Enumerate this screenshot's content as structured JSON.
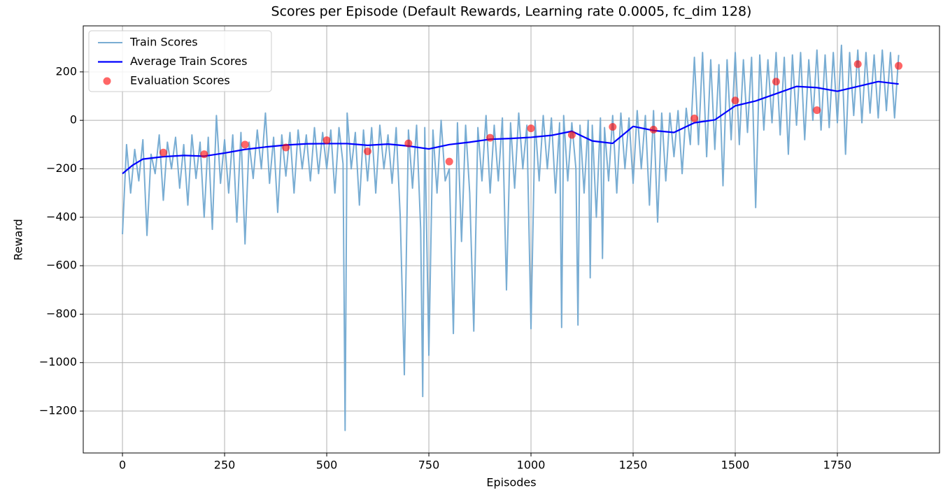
{
  "chart_data": {
    "type": "line",
    "title": "Scores per Episode (Default Rewards, Learning rate 0.0005, fc_dim 128)",
    "x_label": "Episodes",
    "y_label": "Reward",
    "xlim": [
      -96,
      2000
    ],
    "ylim": [
      -1373,
      390
    ],
    "xticks": [
      0,
      250,
      500,
      750,
      1000,
      1250,
      1500,
      1750
    ],
    "yticks": [
      {
        "value": -1200,
        "label": "−1200"
      },
      {
        "value": -1000,
        "label": "−1000"
      },
      {
        "value": -800,
        "label": "−800"
      },
      {
        "value": -600,
        "label": "−600"
      },
      {
        "value": -400,
        "label": "−400"
      },
      {
        "value": -200,
        "label": "−200"
      },
      0,
      200
    ],
    "grid": true,
    "legend": "upper left",
    "series": [
      {
        "name": "Train Scores",
        "type": "line",
        "color": "#72a9d1",
        "x": [
          0,
          10,
          20,
          30,
          40,
          50,
          60,
          70,
          80,
          90,
          100,
          110,
          120,
          130,
          140,
          150,
          160,
          170,
          180,
          190,
          200,
          210,
          220,
          230,
          240,
          250,
          260,
          270,
          280,
          290,
          300,
          310,
          320,
          330,
          340,
          350,
          360,
          370,
          380,
          390,
          400,
          410,
          420,
          430,
          440,
          450,
          460,
          470,
          480,
          490,
          500,
          510,
          520,
          530,
          540,
          545,
          550,
          560,
          570,
          580,
          590,
          600,
          610,
          620,
          630,
          640,
          650,
          660,
          670,
          680,
          690,
          700,
          710,
          720,
          730,
          735,
          740,
          750,
          760,
          770,
          780,
          790,
          800,
          810,
          820,
          830,
          840,
          850,
          860,
          870,
          880,
          890,
          900,
          910,
          920,
          930,
          940,
          950,
          960,
          970,
          980,
          990,
          1000,
          1010,
          1020,
          1030,
          1040,
          1050,
          1060,
          1070,
          1075,
          1080,
          1090,
          1100,
          1110,
          1115,
          1120,
          1130,
          1140,
          1145,
          1150,
          1160,
          1170,
          1175,
          1180,
          1190,
          1200,
          1210,
          1220,
          1230,
          1240,
          1250,
          1260,
          1270,
          1280,
          1290,
          1300,
          1310,
          1320,
          1330,
          1340,
          1350,
          1360,
          1370,
          1380,
          1390,
          1400,
          1410,
          1420,
          1430,
          1440,
          1450,
          1460,
          1470,
          1480,
          1490,
          1500,
          1510,
          1520,
          1530,
          1540,
          1550,
          1560,
          1570,
          1580,
          1590,
          1600,
          1610,
          1620,
          1630,
          1640,
          1650,
          1660,
          1670,
          1680,
          1690,
          1700,
          1710,
          1720,
          1730,
          1740,
          1750,
          1760,
          1770,
          1780,
          1790,
          1800,
          1810,
          1820,
          1830,
          1840,
          1850,
          1860,
          1870,
          1880,
          1890,
          1900
        ],
        "values": [
          -470,
          -100,
          -300,
          -120,
          -250,
          -80,
          -475,
          -140,
          -220,
          -60,
          -330,
          -90,
          -200,
          -70,
          -280,
          -100,
          -350,
          -60,
          -240,
          -90,
          -400,
          -70,
          -450,
          20,
          -260,
          -80,
          -300,
          -60,
          -420,
          -50,
          -510,
          -90,
          -240,
          -40,
          -200,
          30,
          -260,
          -70,
          -380,
          -60,
          -230,
          -50,
          -300,
          -40,
          -200,
          -60,
          -250,
          -30,
          -220,
          -50,
          -200,
          -40,
          -300,
          -30,
          -180,
          -1280,
          30,
          -200,
          -50,
          -350,
          -40,
          -250,
          -30,
          -300,
          -20,
          -200,
          -60,
          -260,
          -30,
          -400,
          -1050,
          -40,
          -280,
          -20,
          -450,
          -1140,
          -30,
          -970,
          -40,
          -300,
          0,
          -250,
          -200,
          -880,
          -10,
          -500,
          -20,
          -300,
          -870,
          -30,
          -250,
          20,
          -300,
          -20,
          -250,
          10,
          -700,
          -10,
          -280,
          30,
          -200,
          -20,
          -860,
          0,
          -250,
          20,
          -200,
          10,
          -300,
          -10,
          -855,
          20,
          -250,
          -10,
          -200,
          -845,
          -20,
          -300,
          0,
          -650,
          -20,
          -400,
          10,
          -570,
          -30,
          -250,
          20,
          -300,
          30,
          -200,
          10,
          -260,
          40,
          -200,
          20,
          -350,
          40,
          -420,
          30,
          -250,
          30,
          -150,
          40,
          -220,
          50,
          -100,
          260,
          -100,
          280,
          -150,
          250,
          -120,
          230,
          -270,
          250,
          -80,
          280,
          -100,
          250,
          -50,
          260,
          -360,
          270,
          -40,
          250,
          -10,
          280,
          -60,
          260,
          -140,
          270,
          -20,
          280,
          -80,
          250,
          0,
          290,
          -40,
          270,
          -30,
          280,
          -10,
          310,
          -140,
          280,
          20,
          290,
          -10,
          280,
          30,
          270,
          10,
          290,
          40,
          280,
          10,
          270
        ]
      },
      {
        "name": "Average Train Scores",
        "type": "line",
        "color": "#0000ff",
        "x": [
          0,
          25,
          50,
          100,
          150,
          200,
          250,
          300,
          350,
          400,
          450,
          500,
          550,
          600,
          650,
          700,
          750,
          800,
          850,
          900,
          950,
          1000,
          1050,
          1100,
          1150,
          1200,
          1250,
          1300,
          1350,
          1400,
          1450,
          1500,
          1550,
          1600,
          1650,
          1700,
          1750,
          1800,
          1850,
          1900
        ],
        "values": [
          -220,
          -185,
          -160,
          -150,
          -145,
          -148,
          -135,
          -120,
          -110,
          -102,
          -97,
          -96,
          -96,
          -103,
          -98,
          -106,
          -118,
          -100,
          -90,
          -78,
          -75,
          -70,
          -62,
          -45,
          -85,
          -95,
          -25,
          -42,
          -50,
          -10,
          2,
          60,
          80,
          110,
          140,
          135,
          120,
          140,
          160,
          150
        ]
      },
      {
        "name": "Evaluation Scores",
        "type": "scatter",
        "color": "#ff0000",
        "x": [
          100,
          200,
          300,
          400,
          500,
          600,
          700,
          800,
          900,
          1000,
          1100,
          1200,
          1300,
          1400,
          1500,
          1600,
          1700,
          1800,
          1900
        ],
        "values": [
          -133,
          -140,
          -100,
          -112,
          -82,
          -128,
          -95,
          -170,
          -72,
          -33,
          -60,
          -27,
          -38,
          8,
          82,
          160,
          42,
          232,
          225
        ]
      }
    ]
  }
}
